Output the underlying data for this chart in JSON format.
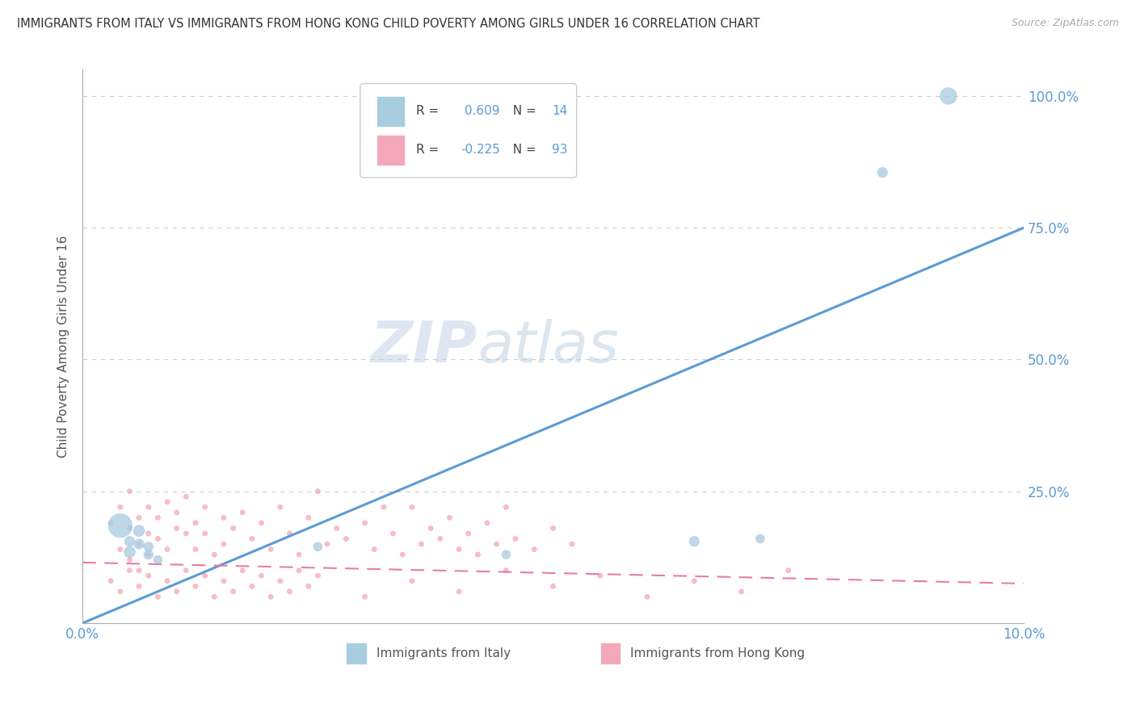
{
  "title": "IMMIGRANTS FROM ITALY VS IMMIGRANTS FROM HONG KONG CHILD POVERTY AMONG GIRLS UNDER 16 CORRELATION CHART",
  "source": "Source: ZipAtlas.com",
  "ylabel": "Child Poverty Among Girls Under 16",
  "xlabel_blue": "Immigrants from Italy",
  "xlabel_pink": "Immigrants from Hong Kong",
  "blue_R": 0.609,
  "blue_N": 14,
  "pink_R": -0.225,
  "pink_N": 93,
  "xlim": [
    0.0,
    0.1
  ],
  "ylim": [
    0.0,
    1.05
  ],
  "blue_color": "#a8cce0",
  "pink_color": "#f4a7b9",
  "blue_line_color": "#5b9bd5",
  "pink_line_color": "#e87da0",
  "watermark_zip": "ZIP",
  "watermark_atlas": "atlas",
  "title_color": "#333333",
  "axis_label_color": "#555555",
  "tick_color": "#5b9bd5",
  "grid_color": "#cccccc",
  "background_color": "#ffffff",
  "blue_scatter_x": [
    0.004,
    0.005,
    0.005,
    0.006,
    0.006,
    0.007,
    0.007,
    0.008,
    0.025,
    0.045,
    0.065,
    0.072,
    0.085,
    0.092
  ],
  "blue_scatter_y": [
    0.185,
    0.135,
    0.155,
    0.175,
    0.15,
    0.145,
    0.13,
    0.12,
    0.145,
    0.13,
    0.155,
    0.16,
    0.855,
    1.0
  ],
  "blue_scatter_size": [
    450,
    100,
    80,
    100,
    80,
    70,
    70,
    60,
    60,
    60,
    80,
    60,
    80,
    220
  ],
  "pink_scatter_x": [
    0.003,
    0.004,
    0.004,
    0.005,
    0.005,
    0.005,
    0.006,
    0.006,
    0.006,
    0.007,
    0.007,
    0.007,
    0.008,
    0.008,
    0.009,
    0.009,
    0.01,
    0.01,
    0.011,
    0.011,
    0.012,
    0.012,
    0.013,
    0.013,
    0.014,
    0.015,
    0.015,
    0.016,
    0.017,
    0.018,
    0.019,
    0.02,
    0.021,
    0.022,
    0.023,
    0.024,
    0.025,
    0.026,
    0.027,
    0.028,
    0.03,
    0.031,
    0.032,
    0.033,
    0.034,
    0.035,
    0.036,
    0.037,
    0.038,
    0.039,
    0.04,
    0.041,
    0.042,
    0.043,
    0.044,
    0.045,
    0.046,
    0.048,
    0.05,
    0.052,
    0.003,
    0.004,
    0.005,
    0.006,
    0.007,
    0.008,
    0.009,
    0.01,
    0.011,
    0.012,
    0.013,
    0.014,
    0.015,
    0.016,
    0.017,
    0.018,
    0.019,
    0.02,
    0.021,
    0.022,
    0.023,
    0.024,
    0.025,
    0.03,
    0.035,
    0.04,
    0.045,
    0.05,
    0.055,
    0.06,
    0.065,
    0.07,
    0.075
  ],
  "pink_scatter_y": [
    0.19,
    0.14,
    0.22,
    0.12,
    0.18,
    0.25,
    0.1,
    0.2,
    0.15,
    0.22,
    0.17,
    0.13,
    0.2,
    0.16,
    0.23,
    0.14,
    0.18,
    0.21,
    0.17,
    0.24,
    0.19,
    0.14,
    0.22,
    0.17,
    0.13,
    0.2,
    0.15,
    0.18,
    0.21,
    0.16,
    0.19,
    0.14,
    0.22,
    0.17,
    0.13,
    0.2,
    0.25,
    0.15,
    0.18,
    0.16,
    0.19,
    0.14,
    0.22,
    0.17,
    0.13,
    0.22,
    0.15,
    0.18,
    0.16,
    0.2,
    0.14,
    0.17,
    0.13,
    0.19,
    0.15,
    0.22,
    0.16,
    0.14,
    0.18,
    0.15,
    0.08,
    0.06,
    0.1,
    0.07,
    0.09,
    0.05,
    0.08,
    0.06,
    0.1,
    0.07,
    0.09,
    0.05,
    0.08,
    0.06,
    0.1,
    0.07,
    0.09,
    0.05,
    0.08,
    0.06,
    0.1,
    0.07,
    0.09,
    0.05,
    0.08,
    0.06,
    0.1,
    0.07,
    0.09,
    0.05,
    0.08,
    0.06,
    0.1
  ],
  "pink_scatter_size": 25,
  "blue_trend_x": [
    0.0,
    0.1
  ],
  "blue_trend_y": [
    0.0,
    0.75
  ],
  "pink_trend_x": [
    0.0,
    0.1
  ],
  "pink_trend_y": [
    0.115,
    0.075
  ],
  "ytick_positions": [
    0.0,
    0.25,
    0.5,
    0.75,
    1.0
  ],
  "ytick_labels": [
    "",
    "25.0%",
    "50.0%",
    "75.0%",
    "100.0%"
  ]
}
